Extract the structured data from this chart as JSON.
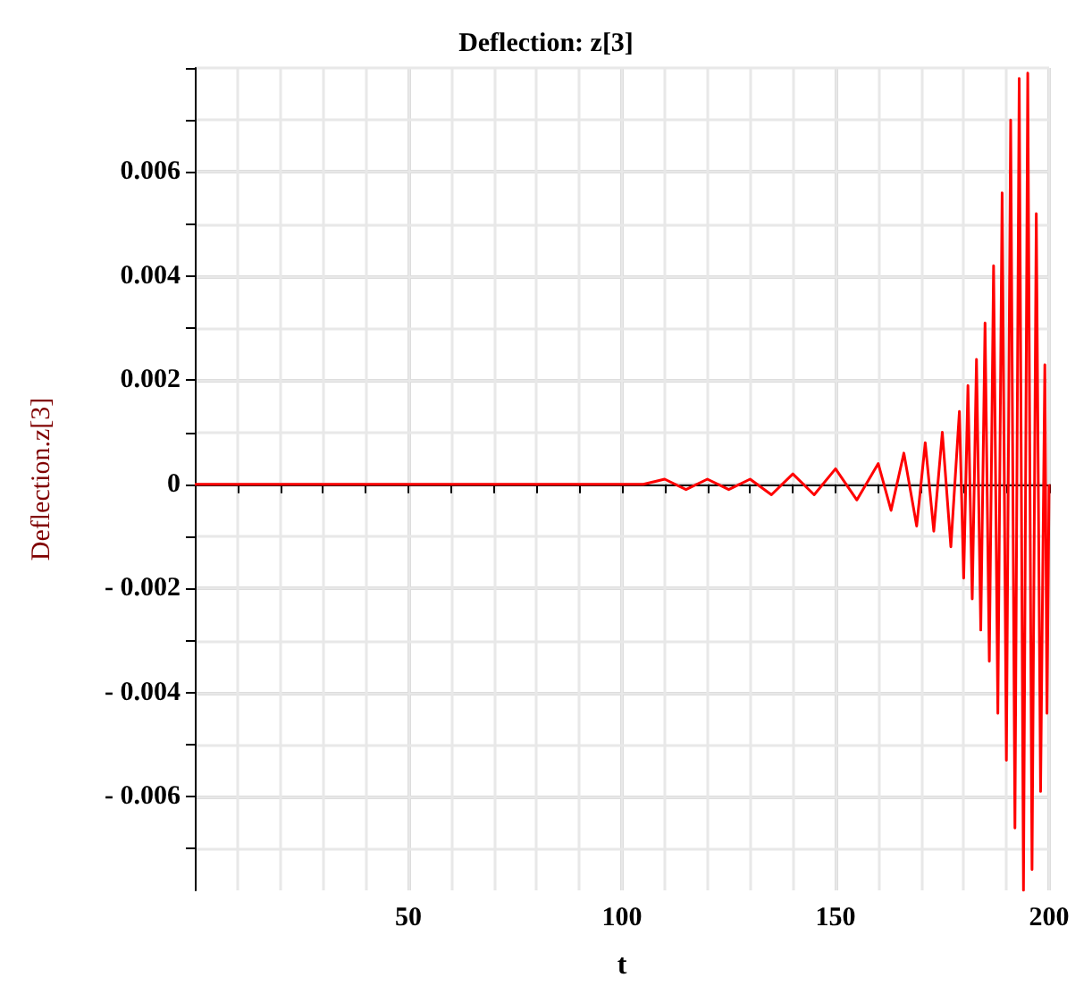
{
  "chart_data": {
    "type": "line",
    "title": "Deflection: z[3]",
    "xlabel": "t",
    "ylabel": "Deflection.z[3]",
    "x": [
      0,
      100,
      105,
      110,
      115,
      120,
      125,
      130,
      135,
      140,
      145,
      150,
      155,
      160,
      163,
      166,
      169,
      171,
      173,
      175,
      177,
      179,
      180,
      181,
      182,
      183,
      184,
      185,
      186,
      187,
      188,
      189,
      190,
      191,
      192,
      193,
      194,
      195,
      196,
      197,
      198,
      199,
      199.5,
      200
    ],
    "series": [
      {
        "color": "#ff0000",
        "values": [
          0,
          0,
          0,
          0.0001,
          -0.0001,
          0.0001,
          -0.0001,
          0.0001,
          -0.0002,
          0.0002,
          -0.0002,
          0.0003,
          -0.0003,
          0.0004,
          -0.0005,
          0.0006,
          -0.0008,
          0.0008,
          -0.0009,
          0.001,
          -0.0012,
          0.0014,
          -0.0018,
          0.0019,
          -0.0022,
          0.0024,
          -0.0028,
          0.0031,
          -0.0034,
          0.0042,
          -0.0044,
          0.0056,
          -0.0053,
          0.007,
          -0.0066,
          0.0078,
          -0.0078,
          0.0079,
          -0.0074,
          0.0052,
          -0.0059,
          0.0023,
          -0.0044,
          0
        ]
      }
    ],
    "xlim": [
      0,
      200
    ],
    "xticks": [
      {
        "value": 10,
        "label": null
      },
      {
        "value": 20,
        "label": null
      },
      {
        "value": 30,
        "label": null
      },
      {
        "value": 40,
        "label": null
      },
      50,
      {
        "value": 60,
        "label": null
      },
      {
        "value": 70,
        "label": null
      },
      {
        "value": 80,
        "label": null
      },
      {
        "value": 90,
        "label": null
      },
      100,
      {
        "value": 110,
        "label": null
      },
      {
        "value": 120,
        "label": null
      },
      {
        "value": 130,
        "label": null
      },
      {
        "value": 140,
        "label": null
      },
      150,
      {
        "value": 160,
        "label": null
      },
      {
        "value": 170,
        "label": null
      },
      {
        "value": 180,
        "label": null
      },
      {
        "value": 190,
        "label": null
      },
      200
    ],
    "ylim": [
      -0.0078,
      0.008
    ],
    "yticks": [
      {
        "value": -0.007,
        "label": null
      },
      {
        "value": -0.006,
        "label": "- 0.006"
      },
      {
        "value": -0.005,
        "label": null
      },
      {
        "value": -0.004,
        "label": "- 0.004"
      },
      {
        "value": -0.003,
        "label": null
      },
      {
        "value": -0.002,
        "label": "- 0.002"
      },
      {
        "value": -0.001,
        "label": null
      },
      0,
      {
        "value": 0.001,
        "label": null
      },
      0.002,
      {
        "value": 0.003,
        "label": null
      },
      0.004,
      {
        "value": 0.005,
        "label": null
      },
      0.006,
      {
        "value": 0.007,
        "label": null
      },
      {
        "value": 0.008,
        "label": null
      }
    ],
    "grid": true,
    "marker": "none",
    "line_style": "solid"
  }
}
